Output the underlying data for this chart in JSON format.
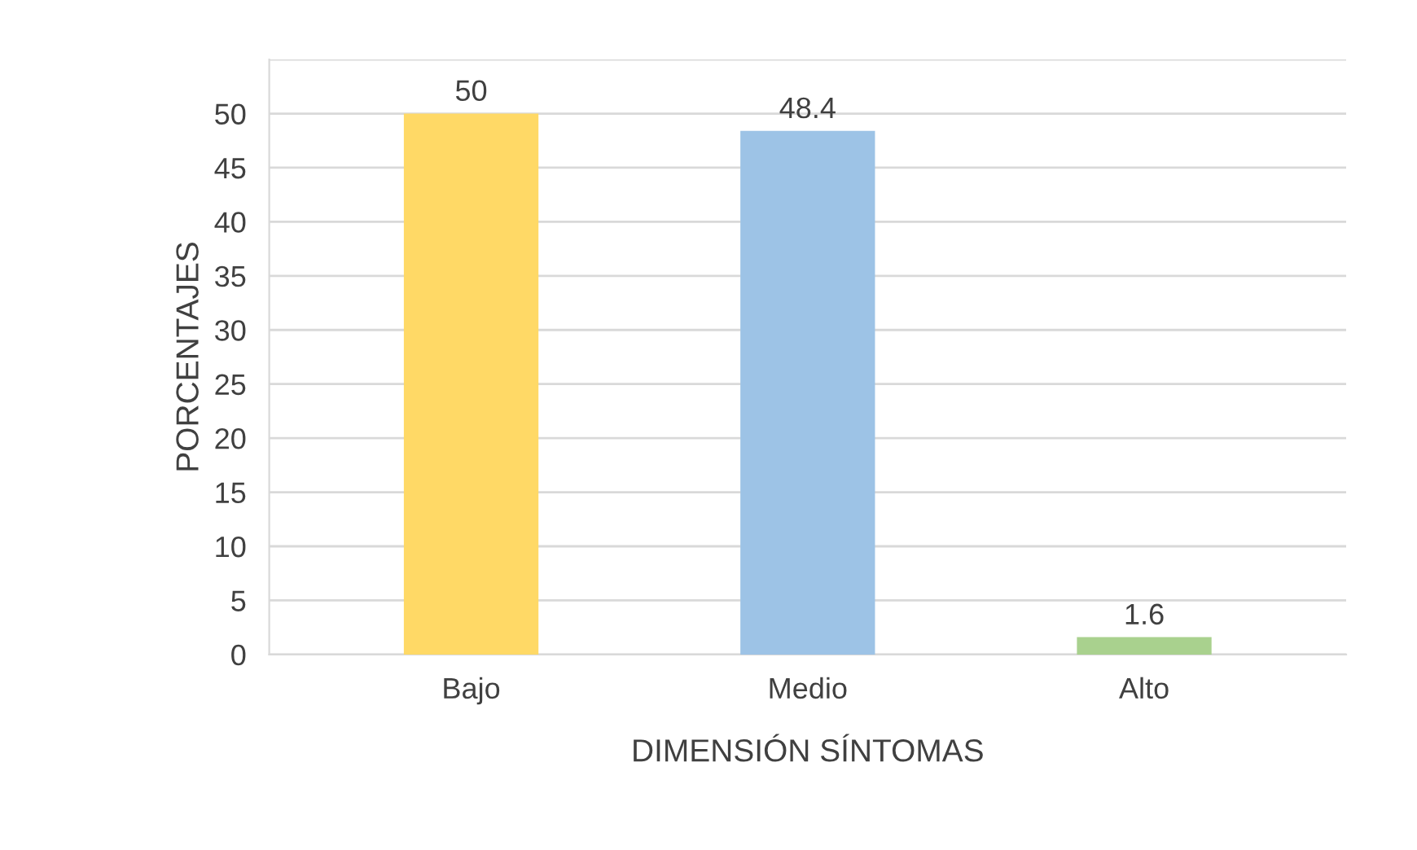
{
  "chart_data": {
    "type": "bar",
    "xlabel": "DIMENSIÓN SÍNTOMAS",
    "ylabel": "PORCENTAJES",
    "categories": [
      "Bajo",
      "Medio",
      "Alto"
    ],
    "values": [
      50,
      48.4,
      1.6
    ],
    "colors": [
      "#ffd966",
      "#9dc3e6",
      "#a9d18e"
    ],
    "ylim": [
      0,
      55
    ],
    "yticks": [
      0,
      5,
      10,
      15,
      20,
      25,
      30,
      35,
      40,
      45,
      50,
      {
        "value": 55,
        "label": null
      }
    ],
    "grid": "y",
    "data_labels": true,
    "legend": false
  }
}
